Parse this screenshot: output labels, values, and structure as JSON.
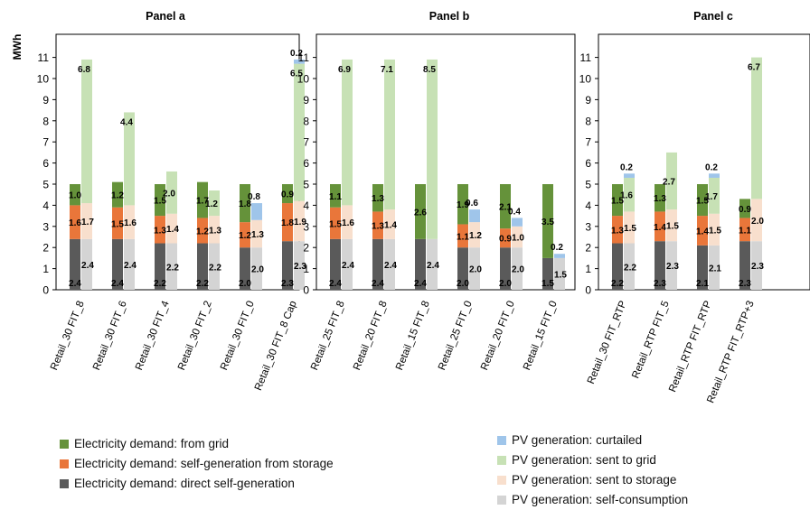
{
  "colors": {
    "grid_demand": "#65923a",
    "storage_demand": "#e9763a",
    "direct_demand": "#5a5a5a",
    "pv_curtailed": "#9fc5ea",
    "pv_grid": "#c7e1b5",
    "pv_storage": "#f8dfcd",
    "pv_self": "#d4d4d4"
  },
  "chart_data": {
    "type": "bar",
    "ylabel": "MWh",
    "ylim": [
      0,
      12
    ],
    "yticks": [
      0,
      1,
      2,
      3,
      4,
      5,
      6,
      7,
      8,
      9,
      10,
      11
    ],
    "grid": false,
    "legend_placement": "bottom",
    "legend": {
      "demand": [
        {
          "key": "grid_demand",
          "label": "Electricity demand: from grid"
        },
        {
          "key": "storage_demand",
          "label": "Electricity demand: self-generation from storage"
        },
        {
          "key": "direct_demand",
          "label": "Electricity demand: direct self-generation"
        }
      ],
      "pv": [
        {
          "key": "pv_curtailed",
          "label": "PV generation: curtailed"
        },
        {
          "key": "pv_grid",
          "label": "PV generation: sent to grid"
        },
        {
          "key": "pv_storage",
          "label": "PV generation: sent to storage"
        },
        {
          "key": "pv_self",
          "label": "PV generation: self-consumption"
        }
      ]
    },
    "panels": [
      {
        "title": "Panel a",
        "scenarios": [
          {
            "label": "Retail_30 FIT_8",
            "demand": {
              "direct": 2.4,
              "storage": 1.6,
              "grid": 1.0
            },
            "pv": {
              "self": 2.4,
              "storage": 1.7,
              "grid": 6.8,
              "curtailed": 0
            }
          },
          {
            "label": "Retail_30 FIT_6",
            "demand": {
              "direct": 2.4,
              "storage": 1.5,
              "grid": 1.2
            },
            "pv": {
              "self": 2.4,
              "storage": 1.6,
              "grid": 4.4,
              "curtailed": 0
            }
          },
          {
            "label": "Retail_30 FIT_4",
            "demand": {
              "direct": 2.2,
              "storage": 1.3,
              "grid": 1.5
            },
            "pv": {
              "self": 2.2,
              "storage": 1.4,
              "grid": 2.0,
              "curtailed": 0
            }
          },
          {
            "label": "Retail_30 FIT_2",
            "demand": {
              "direct": 2.2,
              "storage": 1.2,
              "grid": 1.7
            },
            "pv": {
              "self": 2.2,
              "storage": 1.3,
              "grid": 1.2,
              "curtailed": 0
            }
          },
          {
            "label": "Retail_30 FIT_0",
            "demand": {
              "direct": 2.0,
              "storage": 1.2,
              "grid": 1.8
            },
            "pv": {
              "self": 2.0,
              "storage": 1.3,
              "grid": 0,
              "curtailed": 0.8
            }
          },
          {
            "label": "Retail_30 FIT_8 Cap",
            "demand": {
              "direct": 2.3,
              "storage": 1.8,
              "grid": 0.9
            },
            "pv": {
              "self": 2.3,
              "storage": 1.9,
              "grid": 6.5,
              "curtailed": 0.2
            }
          }
        ]
      },
      {
        "title": "Panel b",
        "scenarios": [
          {
            "label": "Retail_25 FIT_8",
            "demand": {
              "direct": 2.4,
              "storage": 1.5,
              "grid": 1.1
            },
            "pv": {
              "self": 2.4,
              "storage": 1.6,
              "grid": 6.9,
              "curtailed": 0
            }
          },
          {
            "label": "Retail_20 FIT_8",
            "demand": {
              "direct": 2.4,
              "storage": 1.3,
              "grid": 1.3
            },
            "pv": {
              "self": 2.4,
              "storage": 1.4,
              "grid": 7.1,
              "curtailed": 0
            }
          },
          {
            "label": "Retail_15 FIT_8",
            "demand": {
              "direct": 2.4,
              "storage": 0,
              "grid": 2.6
            },
            "pv": {
              "self": 2.4,
              "storage": 0,
              "grid": 8.5,
              "curtailed": 0
            }
          },
          {
            "label": "Retail_25 FIT_0",
            "demand": {
              "direct": 2.0,
              "storage": 1.1,
              "grid": 1.9
            },
            "pv": {
              "self": 2.0,
              "storage": 1.2,
              "grid": 0,
              "curtailed": 0.6
            }
          },
          {
            "label": "Retail_20 FIT_0",
            "demand": {
              "direct": 2.0,
              "storage": 0.9,
              "grid": 2.1
            },
            "pv": {
              "self": 2.0,
              "storage": 1.0,
              "grid": 0,
              "curtailed": 0.4
            }
          },
          {
            "label": "Retail_15 FIT_0",
            "demand": {
              "direct": 1.5,
              "storage": 0,
              "grid": 3.5
            },
            "pv": {
              "self": 1.5,
              "storage": 0,
              "grid": 0,
              "curtailed": 0.2
            }
          }
        ]
      },
      {
        "title": "Panel c",
        "scenarios": [
          {
            "label": "Retail_30 FIT_RTP",
            "demand": {
              "direct": 2.2,
              "storage": 1.3,
              "grid": 1.5
            },
            "pv": {
              "self": 2.2,
              "storage": 1.5,
              "grid": 1.6,
              "curtailed": 0.2
            }
          },
          {
            "label": "Retail_RTP FIT_5",
            "demand": {
              "direct": 2.3,
              "storage": 1.4,
              "grid": 1.3
            },
            "pv": {
              "self": 2.3,
              "storage": 1.5,
              "grid": 2.7,
              "curtailed": 0
            }
          },
          {
            "label": "Retail_RTP FIT_RTP",
            "demand": {
              "direct": 2.1,
              "storage": 1.4,
              "grid": 1.5
            },
            "pv": {
              "self": 2.1,
              "storage": 1.5,
              "grid": 1.7,
              "curtailed": 0.2
            }
          },
          {
            "label": "Retail_RTP FIT_RTP+3",
            "demand": {
              "direct": 2.3,
              "storage": 1.1,
              "grid": 0.9
            },
            "pv": {
              "self": 2.3,
              "storage": 2.0,
              "grid": 6.7,
              "curtailed": 0
            }
          }
        ]
      }
    ]
  }
}
